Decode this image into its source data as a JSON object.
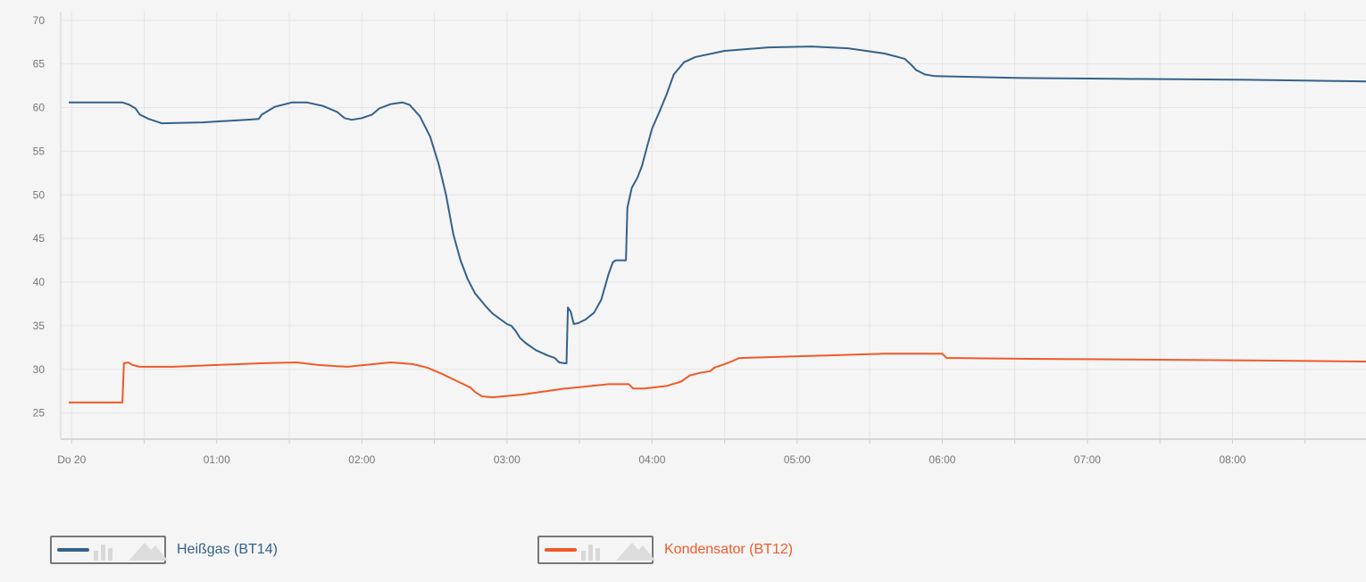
{
  "chart_data": {
    "type": "line",
    "x_tick_labels": [
      "Do 20",
      "01:00",
      "02:00",
      "03:00",
      "04:00",
      "05:00",
      "06:00",
      "07:00",
      "08:00"
    ],
    "y_ticks": [
      25,
      30,
      35,
      40,
      45,
      50,
      55,
      60,
      65,
      70
    ],
    "ylim": [
      22,
      71
    ],
    "xlim_hours": [
      -0.02,
      8.92
    ],
    "grid": true,
    "legend_position": "bottom-left",
    "series": [
      {
        "name": "Heißgas (BT14)",
        "color": "#34618a",
        "points": [
          [
            -0.02,
            60.6
          ],
          [
            0.35,
            60.6
          ],
          [
            0.4,
            60.3
          ],
          [
            0.44,
            59.9
          ],
          [
            0.47,
            59.2
          ],
          [
            0.53,
            58.7
          ],
          [
            0.62,
            58.2
          ],
          [
            0.9,
            58.3
          ],
          [
            1.2,
            58.6
          ],
          [
            1.29,
            58.7
          ],
          [
            1.31,
            59.2
          ],
          [
            1.4,
            60.1
          ],
          [
            1.52,
            60.6
          ],
          [
            1.62,
            60.6
          ],
          [
            1.73,
            60.2
          ],
          [
            1.83,
            59.5
          ],
          [
            1.88,
            58.8
          ],
          [
            1.93,
            58.6
          ],
          [
            2.0,
            58.8
          ],
          [
            2.07,
            59.2
          ],
          [
            2.12,
            59.9
          ],
          [
            2.2,
            60.4
          ],
          [
            2.28,
            60.6
          ],
          [
            2.33,
            60.3
          ],
          [
            2.4,
            59.0
          ],
          [
            2.47,
            56.7
          ],
          [
            2.53,
            53.5
          ],
          [
            2.58,
            50.0
          ],
          [
            2.63,
            45.5
          ],
          [
            2.68,
            42.5
          ],
          [
            2.73,
            40.3
          ],
          [
            2.78,
            38.7
          ],
          [
            2.85,
            37.3
          ],
          [
            2.9,
            36.4
          ],
          [
            2.95,
            35.8
          ],
          [
            3.0,
            35.2
          ],
          [
            3.03,
            35.0
          ],
          [
            3.06,
            34.4
          ],
          [
            3.09,
            33.6
          ],
          [
            3.13,
            33.0
          ],
          [
            3.2,
            32.2
          ],
          [
            3.28,
            31.6
          ],
          [
            3.33,
            31.3
          ],
          [
            3.36,
            30.8
          ],
          [
            3.4,
            30.7
          ],
          [
            3.41,
            30.7
          ],
          [
            3.42,
            37.1
          ],
          [
            3.44,
            36.6
          ],
          [
            3.46,
            35.2
          ],
          [
            3.49,
            35.3
          ],
          [
            3.54,
            35.7
          ],
          [
            3.6,
            36.5
          ],
          [
            3.65,
            38.0
          ],
          [
            3.7,
            40.9
          ],
          [
            3.73,
            42.3
          ],
          [
            3.75,
            42.5
          ],
          [
            3.82,
            42.5
          ],
          [
            3.83,
            48.5
          ],
          [
            3.86,
            50.8
          ],
          [
            3.9,
            52.0
          ],
          [
            3.93,
            53.3
          ],
          [
            3.97,
            55.8
          ],
          [
            4.0,
            57.6
          ],
          [
            4.05,
            59.5
          ],
          [
            4.1,
            61.5
          ],
          [
            4.15,
            63.8
          ],
          [
            4.22,
            65.2
          ],
          [
            4.3,
            65.8
          ],
          [
            4.5,
            66.5
          ],
          [
            4.8,
            66.9
          ],
          [
            5.1,
            67.0
          ],
          [
            5.35,
            66.8
          ],
          [
            5.6,
            66.2
          ],
          [
            5.74,
            65.6
          ],
          [
            5.78,
            65.0
          ],
          [
            5.82,
            64.3
          ],
          [
            5.88,
            63.8
          ],
          [
            5.95,
            63.6
          ],
          [
            6.5,
            63.4
          ],
          [
            7.2,
            63.3
          ],
          [
            8.0,
            63.2
          ],
          [
            8.92,
            63.0
          ]
        ]
      },
      {
        "name": "Kondensator (BT12)",
        "color": "#f05a28",
        "points": [
          [
            -0.02,
            26.2
          ],
          [
            0.34,
            26.2
          ],
          [
            0.35,
            26.2
          ],
          [
            0.36,
            30.7
          ],
          [
            0.39,
            30.8
          ],
          [
            0.42,
            30.5
          ],
          [
            0.47,
            30.3
          ],
          [
            0.7,
            30.3
          ],
          [
            1.0,
            30.5
          ],
          [
            1.3,
            30.7
          ],
          [
            1.55,
            30.8
          ],
          [
            1.7,
            30.5
          ],
          [
            1.9,
            30.3
          ],
          [
            2.08,
            30.6
          ],
          [
            2.2,
            30.8
          ],
          [
            2.35,
            30.6
          ],
          [
            2.45,
            30.2
          ],
          [
            2.55,
            29.5
          ],
          [
            2.65,
            28.7
          ],
          [
            2.75,
            27.9
          ],
          [
            2.78,
            27.4
          ],
          [
            2.83,
            26.9
          ],
          [
            2.9,
            26.8
          ],
          [
            3.1,
            27.1
          ],
          [
            3.4,
            27.8
          ],
          [
            3.7,
            28.3
          ],
          [
            3.84,
            28.3
          ],
          [
            3.87,
            27.8
          ],
          [
            3.95,
            27.8
          ],
          [
            4.1,
            28.1
          ],
          [
            4.2,
            28.6
          ],
          [
            4.26,
            29.3
          ],
          [
            4.33,
            29.6
          ],
          [
            4.4,
            29.8
          ],
          [
            4.43,
            30.2
          ],
          [
            4.5,
            30.6
          ],
          [
            4.56,
            31.0
          ],
          [
            4.6,
            31.3
          ],
          [
            4.8,
            31.4
          ],
          [
            5.2,
            31.6
          ],
          [
            5.6,
            31.8
          ],
          [
            5.97,
            31.8
          ],
          [
            6.0,
            31.8
          ],
          [
            6.03,
            31.3
          ],
          [
            6.1,
            31.3
          ],
          [
            6.7,
            31.2
          ],
          [
            7.5,
            31.1
          ],
          [
            8.3,
            31.0
          ],
          [
            8.92,
            30.9
          ]
        ]
      }
    ]
  },
  "legend": {
    "items": [
      {
        "label": "Heißgas (BT14)",
        "color": "#34618a"
      },
      {
        "label": "Kondensator (BT12)",
        "color": "#f05a28"
      }
    ]
  }
}
